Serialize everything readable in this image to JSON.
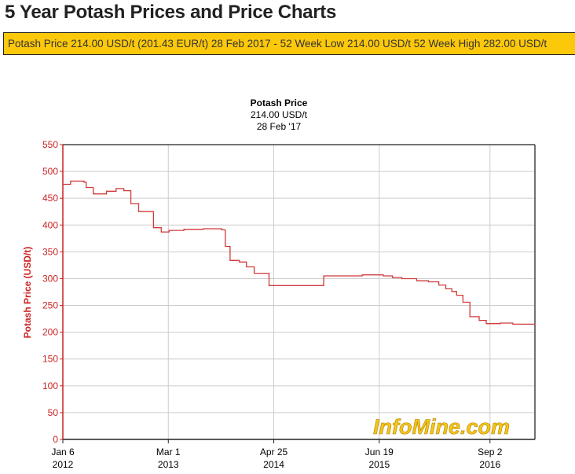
{
  "page_title": "5 Year Potash Prices and Price Charts",
  "banner": "Potash Price 214.00 USD/t (201.43 EUR/t) 28 Feb 2017 - 52 Week Low 214.00 USD/t 52 Week High 282.00 USD/t",
  "watermark": "InfoMine.com",
  "colors": {
    "line": "#d23a3a",
    "axis_label": "#cc2222",
    "banner": "#fcc80a",
    "grid": "#cccccc"
  },
  "chart_data": {
    "type": "line",
    "step": true,
    "title": "Potash Price",
    "subtitle1": "214.00 USD/t",
    "subtitle2": "28 Feb '17",
    "ylabel": "Potash Price (USD/t)",
    "xlabel": "",
    "ylim": [
      0,
      550
    ],
    "xlim": [
      "2012-01-06",
      "2017-02-28"
    ],
    "yticks": [
      0,
      50,
      100,
      150,
      200,
      250,
      300,
      350,
      400,
      450,
      500,
      550
    ],
    "xticks": [
      {
        "date": "2012-01-06",
        "label": "Jan 6",
        "year": "2012"
      },
      {
        "date": "2013-03-01",
        "label": "Mar 1",
        "year": "2013"
      },
      {
        "date": "2014-04-25",
        "label": "Apr 25",
        "year": "2014"
      },
      {
        "date": "2015-06-19",
        "label": "Jun 19",
        "year": "2015"
      },
      {
        "date": "2016-09-02",
        "label": "Sep 2",
        "year": "2016"
      }
    ],
    "grid": true,
    "series": [
      {
        "x": [
          "2012-01-06",
          "2012-02-06",
          "2012-03-30",
          "2012-04-08",
          "2012-05-06",
          "2012-06-28",
          "2012-08-05",
          "2012-09-05",
          "2012-10-03",
          "2012-11-03",
          "2013-01-01",
          "2013-02-01",
          "2013-03-04",
          "2013-05-02",
          "2013-07-19",
          "2013-09-29",
          "2013-10-14",
          "2013-11-02",
          "2013-12-09",
          "2014-01-06",
          "2014-02-06",
          "2014-04-06",
          "2014-11-10",
          "2015-04-12",
          "2015-07-05",
          "2015-08-11",
          "2015-09-17",
          "2015-11-15",
          "2016-01-01",
          "2016-02-11",
          "2016-03-10",
          "2016-04-03",
          "2016-04-22",
          "2016-05-17",
          "2016-06-14",
          "2016-07-21",
          "2016-08-18",
          "2016-10-13",
          "2016-12-02",
          "2017-02-28"
        ],
        "y": [
          476,
          482,
          480,
          470,
          458,
          463,
          468,
          464,
          440,
          425,
          395,
          387,
          390,
          392,
          393,
          391,
          360,
          334,
          331,
          322,
          310,
          287,
          305,
          307,
          305,
          302,
          300,
          296,
          294,
          288,
          281,
          276,
          269,
          256,
          229,
          222,
          216,
          217,
          215,
          214
        ]
      }
    ]
  }
}
